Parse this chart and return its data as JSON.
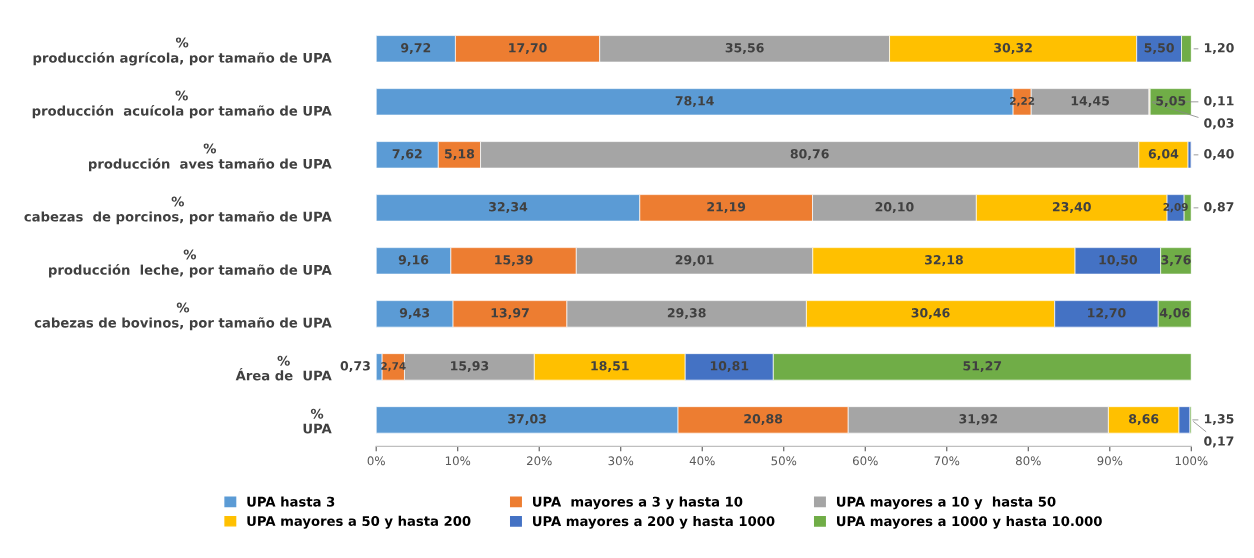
{
  "chart_data": {
    "type": "bar",
    "orientation": "horizontal",
    "stacked": true,
    "categories": [
      "%\nproducción agrícola, por tamaño de UPA",
      "%\nproducción  acuícola por tamaño de UPA",
      "%\nproducción  aves tamaño de UPA",
      "%\ncabezas  de porcinos, por tamaño de UPA",
      "%\nproducción  leche, por tamaño de UPA",
      "%\ncabezas de bovinos, por tamaño de UPA",
      "%\nÁrea de  UPA",
      "%\nUPA"
    ],
    "series": [
      {
        "name": "UPA hasta 3",
        "color": "#5b9bd5",
        "values": [
          9.72,
          78.14,
          7.62,
          32.34,
          9.16,
          9.43,
          0.73,
          37.03
        ],
        "value_labels": [
          "9,72",
          "78,14",
          "7,62",
          "32,34",
          "9,16",
          "9,43",
          "0,73",
          "37,03"
        ]
      },
      {
        "name": "UPA  mayores a 3 y hasta 10",
        "color": "#ed7d31",
        "values": [
          17.7,
          2.22,
          5.18,
          21.19,
          15.39,
          13.97,
          2.74,
          20.88
        ],
        "value_labels": [
          "17,70",
          "2,22",
          "5,18",
          "21,19",
          "15,39",
          "13,97",
          "2,74",
          "20,88"
        ]
      },
      {
        "name": "UPA mayores a 10 y  hasta 50",
        "color": "#a5a5a5",
        "values": [
          35.56,
          14.45,
          80.76,
          20.1,
          29.01,
          29.38,
          15.93,
          31.92
        ],
        "value_labels": [
          "35,56",
          "14,45",
          "80,76",
          "20,10",
          "29,01",
          "29,38",
          "15,93",
          "31,92"
        ]
      },
      {
        "name": "UPA mayores a 50 y hasta 200",
        "color": "#ffc000",
        "values": [
          30.32,
          0.11,
          6.04,
          23.4,
          32.18,
          30.46,
          18.51,
          8.66
        ],
        "value_labels": [
          "30,32",
          "0,11",
          "6,04",
          "23,40",
          "32,18",
          "30,46",
          "18,51",
          "8,66"
        ]
      },
      {
        "name": "UPA mayores a 200 y hasta 1000",
        "color": "#4472c4",
        "values": [
          5.5,
          0.03,
          0.4,
          2.09,
          10.5,
          12.7,
          10.81,
          1.35
        ],
        "value_labels": [
          "5,50",
          "0,03",
          "0,40",
          "2,09",
          "10,50",
          "12,70",
          "10,81",
          "1,35"
        ]
      },
      {
        "name": "UPA mayores a 1000 y hasta 10.000",
        "color": "#70ad47",
        "values": [
          1.2,
          5.05,
          null,
          0.87,
          3.76,
          4.06,
          51.27,
          0.17
        ],
        "value_labels": [
          "1,20",
          "5,05",
          null,
          "0,87",
          "3,76",
          "4,06",
          "51,27",
          "0,17"
        ]
      }
    ],
    "xlim": [
      0,
      100
    ],
    "xticks": [
      {
        "value": 0,
        "label": "0%"
      },
      {
        "value": 10,
        "label": "10%"
      },
      {
        "value": 20,
        "label": "20%"
      },
      {
        "value": 30,
        "label": "30%"
      },
      {
        "value": 40,
        "label": "40%"
      },
      {
        "value": 50,
        "label": "50%"
      },
      {
        "value": 60,
        "label": "60%"
      },
      {
        "value": 70,
        "label": "70%"
      },
      {
        "value": 80,
        "label": "80%"
      },
      {
        "value": 90,
        "label": "90%"
      },
      {
        "value": 100,
        "label": "100%"
      }
    ],
    "grid": false,
    "legend": "bottom"
  }
}
